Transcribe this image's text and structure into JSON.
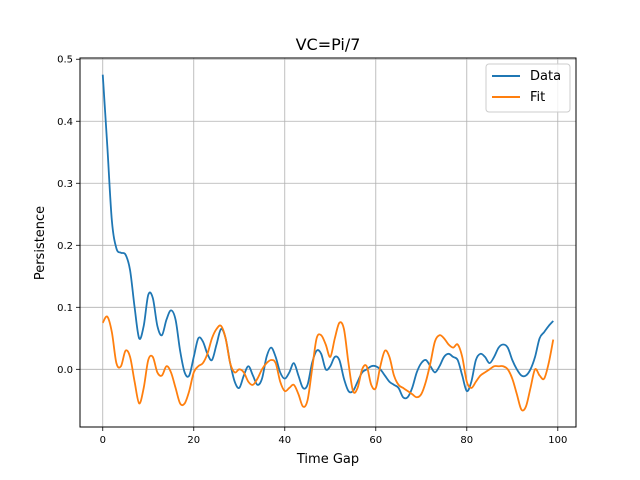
{
  "chart_data": {
    "type": "line",
    "title": "VC=Pi/7",
    "xlabel": "Time Gap",
    "ylabel": "Persistence",
    "xlim": [
      -5,
      104
    ],
    "ylim": [
      -0.093,
      0.502
    ],
    "xticks": [
      0,
      20,
      40,
      60,
      80,
      100
    ],
    "yticks": [
      0.0,
      0.1,
      0.2,
      0.3,
      0.4,
      0.5
    ],
    "xtick_labels": [
      "0",
      "20",
      "40",
      "60",
      "80",
      "100"
    ],
    "ytick_labels": [
      "0.0",
      "0.1",
      "0.2",
      "0.3",
      "0.4",
      "0.5"
    ],
    "grid": true,
    "legend_position": "top-right",
    "series": [
      {
        "name": "Data",
        "color": "#1f77b4",
        "points": [
          [
            0,
            0.475
          ],
          [
            1,
            0.36
          ],
          [
            2,
            0.24
          ],
          [
            3,
            0.195
          ],
          [
            4,
            0.188
          ],
          [
            5,
            0.185
          ],
          [
            6,
            0.16
          ],
          [
            7,
            0.1
          ],
          [
            8,
            0.05
          ],
          [
            9,
            0.07
          ],
          [
            10,
            0.12
          ],
          [
            11,
            0.115
          ],
          [
            12,
            0.07
          ],
          [
            13,
            0.055
          ],
          [
            14,
            0.08
          ],
          [
            15,
            0.095
          ],
          [
            16,
            0.08
          ],
          [
            17,
            0.03
          ],
          [
            18,
            -0.005
          ],
          [
            19,
            -0.01
          ],
          [
            20,
            0.02
          ],
          [
            21,
            0.05
          ],
          [
            22,
            0.045
          ],
          [
            23,
            0.025
          ],
          [
            24,
            0.015
          ],
          [
            25,
            0.04
          ],
          [
            26,
            0.065
          ],
          [
            27,
            0.05
          ],
          [
            28,
            0.01
          ],
          [
            29,
            -0.02
          ],
          [
            30,
            -0.03
          ],
          [
            31,
            -0.01
          ],
          [
            32,
            0.005
          ],
          [
            33,
            -0.01
          ],
          [
            34,
            -0.025
          ],
          [
            35,
            -0.015
          ],
          [
            36,
            0.02
          ],
          [
            37,
            0.035
          ],
          [
            38,
            0.02
          ],
          [
            39,
            -0.005
          ],
          [
            40,
            -0.015
          ],
          [
            41,
            -0.005
          ],
          [
            42,
            0.01
          ],
          [
            43,
            -0.01
          ],
          [
            44,
            -0.03
          ],
          [
            45,
            -0.025
          ],
          [
            46,
            0.01
          ],
          [
            47,
            0.03
          ],
          [
            48,
            0.025
          ],
          [
            49,
            0.0
          ],
          [
            50,
            0.005
          ],
          [
            51,
            0.02
          ],
          [
            52,
            0.015
          ],
          [
            53,
            -0.015
          ],
          [
            54,
            -0.035
          ],
          [
            55,
            -0.035
          ],
          [
            56,
            -0.02
          ],
          [
            57,
            -0.005
          ],
          [
            58,
            0.0
          ],
          [
            59,
            0.005
          ],
          [
            60,
            0.005
          ],
          [
            61,
            0.0
          ],
          [
            62,
            -0.01
          ],
          [
            63,
            -0.02
          ],
          [
            64,
            -0.025
          ],
          [
            65,
            -0.03
          ],
          [
            66,
            -0.045
          ],
          [
            67,
            -0.045
          ],
          [
            68,
            -0.03
          ],
          [
            69,
            -0.005
          ],
          [
            70,
            0.01
          ],
          [
            71,
            0.015
          ],
          [
            72,
            0.005
          ],
          [
            73,
            -0.005
          ],
          [
            74,
            0.005
          ],
          [
            75,
            0.02
          ],
          [
            76,
            0.025
          ],
          [
            77,
            0.02
          ],
          [
            78,
            0.015
          ],
          [
            79,
            -0.01
          ],
          [
            80,
            -0.035
          ],
          [
            81,
            -0.02
          ],
          [
            82,
            0.015
          ],
          [
            83,
            0.025
          ],
          [
            84,
            0.02
          ],
          [
            85,
            0.01
          ],
          [
            86,
            0.02
          ],
          [
            87,
            0.035
          ],
          [
            88,
            0.04
          ],
          [
            89,
            0.035
          ],
          [
            90,
            0.015
          ],
          [
            91,
            0.0
          ],
          [
            92,
            -0.01
          ],
          [
            93,
            -0.01
          ],
          [
            94,
            0.0
          ],
          [
            95,
            0.02
          ],
          [
            96,
            0.05
          ],
          [
            97,
            0.06
          ],
          [
            98,
            0.07
          ],
          [
            99,
            0.078
          ]
        ]
      },
      {
        "name": "Fit",
        "color": "#ff7f0e",
        "points": [
          [
            0,
            0.075
          ],
          [
            1,
            0.085
          ],
          [
            2,
            0.06
          ],
          [
            3,
            0.01
          ],
          [
            4,
            0.005
          ],
          [
            5,
            0.03
          ],
          [
            6,
            0.02
          ],
          [
            7,
            -0.02
          ],
          [
            8,
            -0.055
          ],
          [
            9,
            -0.03
          ],
          [
            10,
            0.015
          ],
          [
            11,
            0.02
          ],
          [
            12,
            -0.005
          ],
          [
            13,
            -0.01
          ],
          [
            14,
            0.005
          ],
          [
            15,
            -0.005
          ],
          [
            16,
            -0.03
          ],
          [
            17,
            -0.055
          ],
          [
            18,
            -0.055
          ],
          [
            19,
            -0.035
          ],
          [
            20,
            -0.005
          ],
          [
            21,
            0.005
          ],
          [
            22,
            0.01
          ],
          [
            23,
            0.025
          ],
          [
            24,
            0.05
          ],
          [
            25,
            0.065
          ],
          [
            26,
            0.07
          ],
          [
            27,
            0.05
          ],
          [
            28,
            0.01
          ],
          [
            29,
            -0.005
          ],
          [
            30,
            0.0
          ],
          [
            31,
            -0.005
          ],
          [
            32,
            -0.02
          ],
          [
            33,
            -0.025
          ],
          [
            34,
            -0.015
          ],
          [
            35,
            0.0
          ],
          [
            36,
            0.01
          ],
          [
            37,
            0.015
          ],
          [
            38,
            0.01
          ],
          [
            39,
            -0.02
          ],
          [
            40,
            -0.035
          ],
          [
            41,
            -0.03
          ],
          [
            42,
            -0.025
          ],
          [
            43,
            -0.04
          ],
          [
            44,
            -0.06
          ],
          [
            45,
            -0.05
          ],
          [
            46,
            0.0
          ],
          [
            47,
            0.05
          ],
          [
            48,
            0.055
          ],
          [
            49,
            0.04
          ],
          [
            50,
            0.02
          ],
          [
            51,
            0.05
          ],
          [
            52,
            0.075
          ],
          [
            53,
            0.065
          ],
          [
            54,
            0.01
          ],
          [
            55,
            -0.035
          ],
          [
            56,
            -0.03
          ],
          [
            57,
            0.0
          ],
          [
            58,
            0.005
          ],
          [
            59,
            -0.025
          ],
          [
            60,
            -0.03
          ],
          [
            61,
            0.005
          ],
          [
            62,
            0.03
          ],
          [
            63,
            0.02
          ],
          [
            64,
            -0.01
          ],
          [
            65,
            -0.025
          ],
          [
            66,
            -0.03
          ],
          [
            67,
            -0.035
          ],
          [
            68,
            -0.04
          ],
          [
            69,
            -0.045
          ],
          [
            70,
            -0.04
          ],
          [
            71,
            -0.02
          ],
          [
            72,
            0.01
          ],
          [
            73,
            0.045
          ],
          [
            74,
            0.055
          ],
          [
            75,
            0.05
          ],
          [
            76,
            0.04
          ],
          [
            77,
            0.035
          ],
          [
            78,
            0.04
          ],
          [
            79,
            0.02
          ],
          [
            80,
            -0.02
          ],
          [
            81,
            -0.03
          ],
          [
            82,
            -0.02
          ],
          [
            83,
            -0.01
          ],
          [
            84,
            -0.005
          ],
          [
            85,
            0.0
          ],
          [
            86,
            0.005
          ],
          [
            87,
            0.005
          ],
          [
            88,
            0.005
          ],
          [
            89,
            0.0
          ],
          [
            90,
            -0.015
          ],
          [
            91,
            -0.04
          ],
          [
            92,
            -0.065
          ],
          [
            93,
            -0.06
          ],
          [
            94,
            -0.03
          ],
          [
            95,
            0.0
          ],
          [
            96,
            -0.01
          ],
          [
            97,
            -0.015
          ],
          [
            98,
            0.01
          ],
          [
            99,
            0.048
          ]
        ]
      }
    ]
  }
}
